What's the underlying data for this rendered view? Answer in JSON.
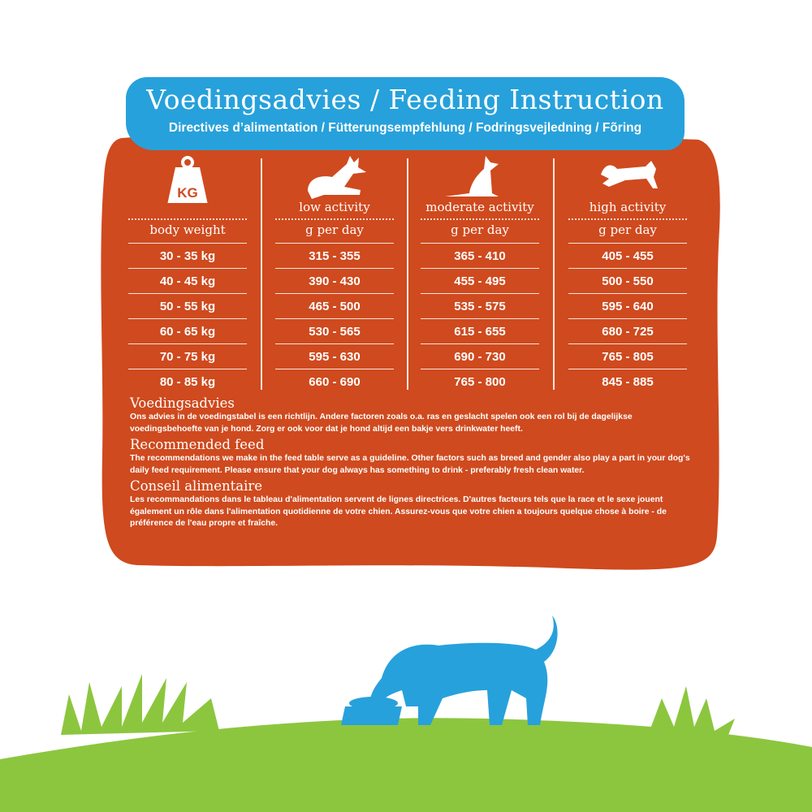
{
  "colors": {
    "panel": "#cf4a1e",
    "banner": "#27a1db",
    "grass": "#8cc63f",
    "dog": "#27a1db"
  },
  "header": {
    "title": "Voedingsadvies / Feeding Instruction",
    "subtitle": "Directives d’alimentation / Fütterungsempfehlung / Fodringsvejledning / Fõring"
  },
  "table": {
    "weight_icon_label": "KG",
    "columns": [
      {
        "icon": "weight-icon",
        "activity": "",
        "unit": "body weight",
        "values": [
          "30 - 35 kg",
          "40 - 45 kg",
          "50 - 55 kg",
          "60 - 65 kg",
          "70 - 75 kg",
          "80 - 85 kg"
        ]
      },
      {
        "icon": "lying-dog-icon",
        "activity": "low activity",
        "unit": "g per day",
        "values": [
          "315 - 355",
          "390 - 430",
          "465 - 500",
          "530 - 565",
          "595 - 630",
          "660 - 690"
        ]
      },
      {
        "icon": "sitting-dog-icon",
        "activity": "moderate activity",
        "unit": "g per day",
        "values": [
          "365 - 410",
          "455 - 495",
          "535 - 575",
          "615 - 655",
          "690 - 730",
          "765 - 800"
        ]
      },
      {
        "icon": "jumping-dog-icon",
        "activity": "high activity",
        "unit": "g per day",
        "values": [
          "405 - 455",
          "500 - 550",
          "595 - 640",
          "680 - 725",
          "765 - 805",
          "845 - 885"
        ]
      }
    ]
  },
  "notes": [
    {
      "heading": "Voedingsadvies",
      "text": "Ons advies in de voedingstabel is een richtlijn. Andere factoren zoals o.a. ras en geslacht spelen ook een rol bij de dagelijkse voedingsbehoefte van je hond. Zorg er ook voor dat je hond altijd een bakje vers drinkwater heeft."
    },
    {
      "heading": "Recommended feed",
      "text": "The recommendations we make in the feed table serve as a guideline. Other factors such as breed and gender also play a part in your dog's daily feed requirement. Please ensure that your dog always has something to drink - preferably fresh clean water."
    },
    {
      "heading": "Conseil alimentaire",
      "text": "Les recommandations dans le tableau d'alimentation servent de lignes directrices. D'autres facteurs tels que la race et le sexe jouent également un rôle dans l'alimentation quotidienne de votre chien. Assurez-vous que votre chien a toujours quelque chose à boire - de préférence de l'eau propre et fraîche."
    }
  ]
}
